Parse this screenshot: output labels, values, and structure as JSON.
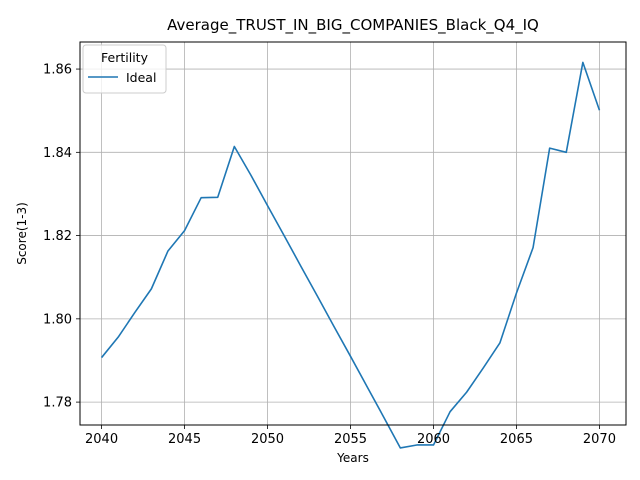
{
  "chart_data": {
    "type": "line",
    "title": "Average_TRUST_IN_BIG_COMPANIES_Black_Q4_IQ",
    "xlabel": "Years",
    "ylabel": "Score(1-3)",
    "xlim": [
      2038.7,
      2071.6
    ],
    "ylim": [
      1.7745,
      1.8665
    ],
    "xticks": [
      2040,
      2045,
      2050,
      2055,
      2060,
      2065,
      2070
    ],
    "yticks": [
      1.78,
      1.8,
      1.82,
      1.84,
      1.86
    ],
    "ytick_labels": [
      "1.78",
      "1.80",
      "1.82",
      "1.84",
      "1.86"
    ],
    "grid": true,
    "legend": {
      "title": "Fertility",
      "placement": "upper left"
    },
    "series": [
      {
        "name": "Ideal",
        "color": "#1f77b4",
        "x": [
          2040,
          2041,
          2042,
          2043,
          2044,
          2045,
          2046,
          2047,
          2048,
          2049,
          2050,
          2051,
          2052,
          2053,
          2054,
          2055,
          2056,
          2057,
          2058,
          2059,
          2060,
          2061,
          2062,
          2063,
          2064,
          2065,
          2066,
          2067,
          2068,
          2069,
          2070
        ],
        "y": [
          1.7907,
          1.7956,
          1.8015,
          1.8072,
          1.8163,
          1.8212,
          1.8291,
          1.8292,
          1.8414,
          1.8345,
          1.8272,
          1.82,
          1.8127,
          1.8055,
          1.7982,
          1.791,
          1.7837,
          1.7764,
          1.769,
          1.7697,
          1.7697,
          1.7777,
          1.7824,
          1.7882,
          1.7942,
          1.8062,
          1.8171,
          1.841,
          1.84,
          1.8616,
          1.8501
        ]
      }
    ]
  }
}
